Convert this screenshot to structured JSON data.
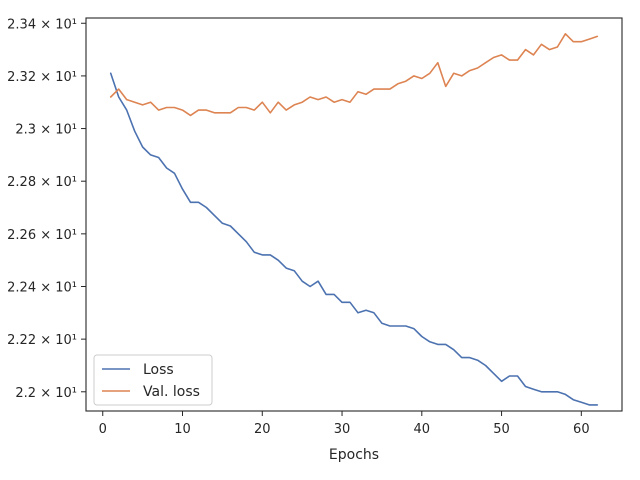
{
  "chart_data": {
    "type": "line",
    "title": "",
    "xlabel": "Epochs",
    "ylabel": "",
    "xlim": [
      -2.1,
      65.1
    ],
    "ylim": [
      21.927,
      23.42
    ],
    "grid": false,
    "legend_position": "lower-left",
    "x_ticks": [
      {
        "value": 0,
        "label": "0"
      },
      {
        "value": 10,
        "label": "10"
      },
      {
        "value": 20,
        "label": "20"
      },
      {
        "value": 30,
        "label": "30"
      },
      {
        "value": 40,
        "label": "40"
      },
      {
        "value": 50,
        "label": "50"
      },
      {
        "value": 60,
        "label": "60"
      }
    ],
    "y_ticks": [
      {
        "value": 22.0,
        "label": "2.2 × 10¹"
      },
      {
        "value": 22.2,
        "label": "2.22 × 10¹"
      },
      {
        "value": 22.4,
        "label": "2.24 × 10¹"
      },
      {
        "value": 22.6,
        "label": "2.26 × 10¹"
      },
      {
        "value": 22.8,
        "label": "2.28 × 10¹"
      },
      {
        "value": 23.0,
        "label": "2.3 × 10¹"
      },
      {
        "value": 23.2,
        "label": "2.32 × 10¹"
      },
      {
        "value": 23.4,
        "label": "2.34 × 10¹"
      }
    ],
    "series": [
      {
        "name": "Loss",
        "color": "#4c72b0",
        "x": [
          1,
          2,
          3,
          4,
          5,
          6,
          7,
          8,
          9,
          10,
          11,
          12,
          13,
          14,
          15,
          16,
          17,
          18,
          19,
          20,
          21,
          22,
          23,
          24,
          25,
          26,
          27,
          28,
          29,
          30,
          31,
          32,
          33,
          34,
          35,
          36,
          37,
          38,
          39,
          40,
          41,
          42,
          43,
          44,
          45,
          46,
          47,
          48,
          49,
          50,
          51,
          52,
          53,
          54,
          55,
          56,
          57,
          58,
          59,
          60,
          61,
          62
        ],
        "values": [
          23.21,
          23.12,
          23.07,
          22.99,
          22.93,
          22.9,
          22.89,
          22.85,
          22.83,
          22.77,
          22.72,
          22.72,
          22.7,
          22.67,
          22.64,
          22.63,
          22.6,
          22.57,
          22.53,
          22.52,
          22.52,
          22.5,
          22.47,
          22.46,
          22.42,
          22.4,
          22.42,
          22.37,
          22.37,
          22.34,
          22.34,
          22.3,
          22.31,
          22.3,
          22.26,
          22.25,
          22.25,
          22.25,
          22.24,
          22.21,
          22.19,
          22.18,
          22.18,
          22.16,
          22.13,
          22.13,
          22.12,
          22.1,
          22.07,
          22.04,
          22.06,
          22.06,
          22.02,
          22.01,
          22.0,
          22.0,
          22.0,
          21.99,
          21.97,
          21.96,
          21.95,
          21.95
        ]
      },
      {
        "name": "Val. loss",
        "color": "#dd8452",
        "x": [
          1,
          2,
          3,
          4,
          5,
          6,
          7,
          8,
          9,
          10,
          11,
          12,
          13,
          14,
          15,
          16,
          17,
          18,
          19,
          20,
          21,
          22,
          23,
          24,
          25,
          26,
          27,
          28,
          29,
          30,
          31,
          32,
          33,
          34,
          35,
          36,
          37,
          38,
          39,
          40,
          41,
          42,
          43,
          44,
          45,
          46,
          47,
          48,
          49,
          50,
          51,
          52,
          53,
          54,
          55,
          56,
          57,
          58,
          59,
          60,
          61,
          62
        ],
        "values": [
          23.12,
          23.15,
          23.11,
          23.1,
          23.09,
          23.1,
          23.07,
          23.08,
          23.08,
          23.07,
          23.05,
          23.07,
          23.07,
          23.06,
          23.06,
          23.06,
          23.08,
          23.08,
          23.07,
          23.1,
          23.06,
          23.1,
          23.07,
          23.09,
          23.1,
          23.12,
          23.11,
          23.12,
          23.1,
          23.11,
          23.1,
          23.14,
          23.13,
          23.15,
          23.15,
          23.15,
          23.17,
          23.18,
          23.2,
          23.19,
          23.21,
          23.25,
          23.16,
          23.21,
          23.2,
          23.22,
          23.23,
          23.25,
          23.27,
          23.28,
          23.26,
          23.26,
          23.3,
          23.28,
          23.32,
          23.3,
          23.31,
          23.36,
          23.33,
          23.33,
          23.34,
          23.35
        ]
      }
    ]
  }
}
